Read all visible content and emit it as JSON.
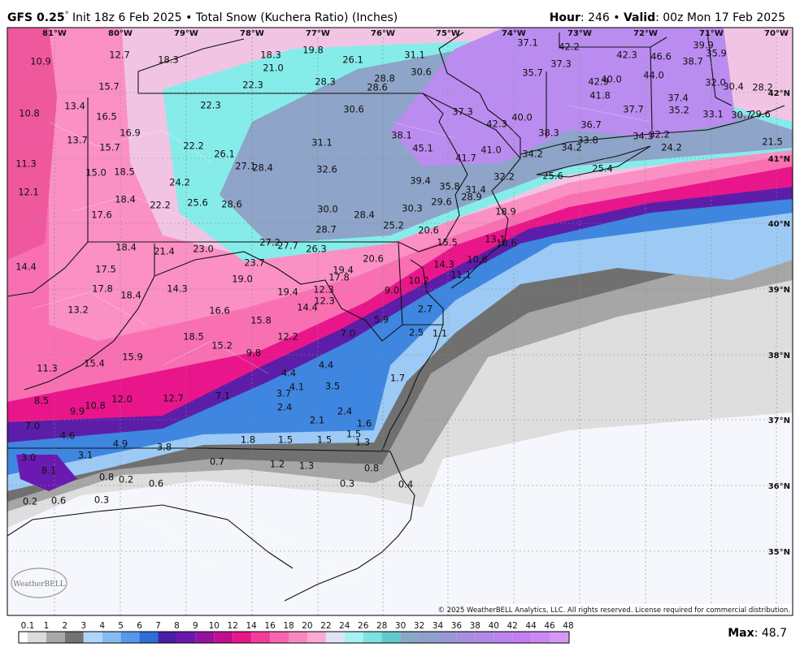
{
  "header": {
    "title_bold": "GFS 0.25",
    "degree": "°",
    "title_rest": " Init 18z 6 Feb 2025 • Total Snow (Kuchera Ratio) (Inches)",
    "hour_label": "Hour",
    "hour_value": ": 246 • ",
    "valid_label": "Valid",
    "valid_value": ": 00z Mon 17 Feb 2025"
  },
  "map": {
    "longitudes": [
      "81°W",
      "80°W",
      "79°W",
      "78°W",
      "77°W",
      "76°W",
      "75°W",
      "74°W",
      "73°W",
      "72°W",
      "71°W",
      "70°W"
    ],
    "latitudes": [
      "42°N",
      "41°N",
      "40°N",
      "39°N",
      "38°N",
      "37°N",
      "36°N",
      "35°N"
    ],
    "labels": [
      "10.9",
      "12.7",
      "18.3",
      "18.3",
      "21.0",
      "19.8",
      "26.1",
      "31.1",
      "30.6",
      "37.1",
      "42.2",
      "37.3",
      "42.3",
      "46.6",
      "38.7",
      "39.9",
      "35.9",
      "35.7",
      "44.0",
      "40.0",
      "42.9",
      "32.0",
      "30.4",
      "28.2",
      "15.7",
      "22.3",
      "28.3",
      "28.8",
      "28.6",
      "13.4",
      "10.8",
      "16.5",
      "22.3",
      "30.6",
      "37.3",
      "41.8",
      "37.4",
      "37.7",
      "35.2",
      "33.1",
      "30.7",
      "29.6",
      "42.3",
      "40.0",
      "36.7",
      "16.9",
      "13.7",
      "31.1",
      "38.1",
      "38.3",
      "15.7",
      "22.2",
      "26.1",
      "45.1",
      "41.0",
      "34.2",
      "33.8",
      "34.2",
      "34.3",
      "32.2",
      "24.2",
      "21.5",
      "11.3",
      "27.1",
      "28.4",
      "32.6",
      "41.7",
      "15.0",
      "18.5",
      "32.2",
      "25.6",
      "25.4",
      "24.2",
      "39.4",
      "35.8",
      "31.4",
      "28.9",
      "12.1",
      "18.4",
      "22.2",
      "25.6",
      "28.6",
      "29.6",
      "30.0",
      "30.3",
      "17.6",
      "28.4",
      "18.9",
      "28.7",
      "25.2",
      "20.6",
      "27.2",
      "27.7",
      "18.4",
      "21.4",
      "23.0",
      "26.3",
      "15.5",
      "13.1",
      "10.6",
      "14.4",
      "17.5",
      "23.7",
      "20.6",
      "19.4",
      "14.3",
      "10.6",
      "19.0",
      "17.8",
      "10.2",
      "11.1",
      "17.8",
      "18.4",
      "14.3",
      "19.4",
      "12.3",
      "9.0",
      "12.3",
      "13.2",
      "16.6",
      "14.4",
      "15.8",
      "2.7",
      "5.9",
      "18.5",
      "12.2",
      "7.0",
      "2.5",
      "1.1",
      "15.2",
      "9.8",
      "15.9",
      "15.4",
      "4.4",
      "11.3",
      "4.4",
      "4.1",
      "3.5",
      "1.7",
      "3.7",
      "7.1",
      "8.5",
      "12.0",
      "10.8",
      "9.9",
      "12.7",
      "2.4",
      "2.4",
      "2.1",
      "1.6",
      "7.0",
      "4.6",
      "1.5",
      "1.5",
      "1.5",
      "1.8",
      "1.3",
      "4.9",
      "3.8",
      "3.1",
      "3.0",
      "8.1",
      "0.7",
      "1.2",
      "1.3",
      "0.8",
      "0.8",
      "0.2",
      "0.6",
      "0.3",
      "0.4",
      "0.2",
      "0.6",
      "0.3"
    ],
    "copyright": "© 2025 WeatherBELL Analytics, LLC. All rights reserved. License required for commercial distribution.",
    "logo": "WeatherBELL"
  },
  "colorbar": {
    "ticks": [
      "0.1",
      "1",
      "2",
      "3",
      "4",
      "5",
      "6",
      "7",
      "8",
      "9",
      "10",
      "12",
      "14",
      "16",
      "18",
      "20",
      "22",
      "24",
      "26",
      "28",
      "30",
      "32",
      "34",
      "36",
      "38",
      "40",
      "42",
      "44",
      "46",
      "48"
    ],
    "colors": [
      "#dcdcdc",
      "#a8a8a8",
      "#737373",
      "#aed6f8",
      "#84bcf2",
      "#5898ea",
      "#2e6ed8",
      "#4a1ea6",
      "#6c16ae",
      "#96129e",
      "#c01090",
      "#e8168a",
      "#f43c9c",
      "#f864ae",
      "#fa88c0",
      "#fcaad2",
      "#dfe4f4",
      "#a6f2f2",
      "#7ce2e2",
      "#5ecaca",
      "#88a8c6",
      "#8ea0cc",
      "#9a98d4",
      "#a690de",
      "#b088e6",
      "#bc82ee",
      "#c47ef2",
      "#cc88f4",
      "#d498f6",
      "#dcaaf8"
    ]
  },
  "max": {
    "label": "Max",
    "value": ": 48.7"
  }
}
